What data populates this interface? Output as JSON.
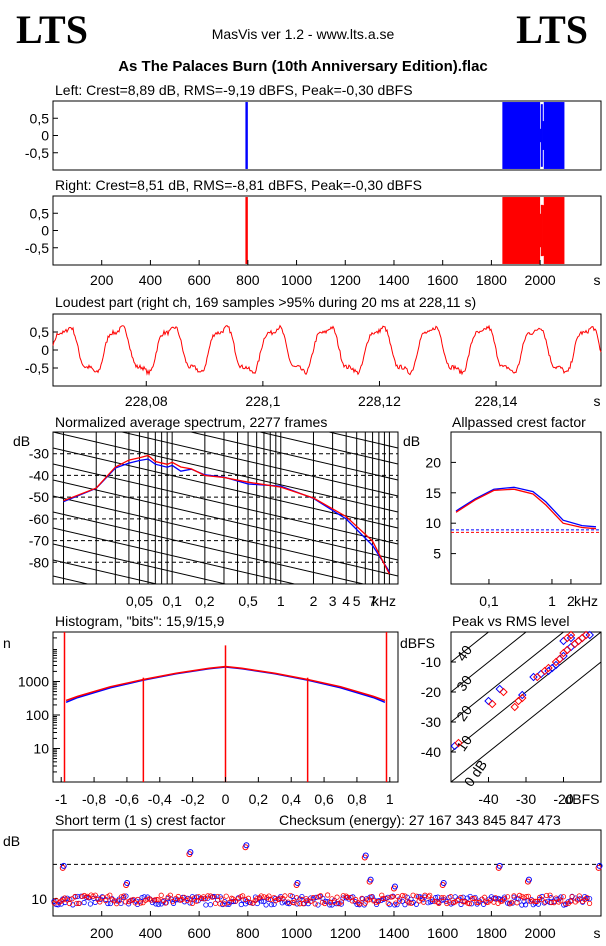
{
  "header": {
    "logo_left": "LTS",
    "logo_right": "LTS",
    "app_title": "MasVis ver 1.2 - www.lts.a.se",
    "file_name": "As The Palaces Burn (10th Anniversary Edition).flac"
  },
  "colors": {
    "left": "#0000ff",
    "right": "#ff0000"
  },
  "chart_data": [
    {
      "id": "left-waveform",
      "type": "area",
      "title": "Left: Crest=8,89 dB, RMS=-9,19 dBFS, Peak=-0,30 dBFS",
      "y_ticks": [
        "0,5",
        "0",
        "-0,5"
      ],
      "ylim": [
        -1,
        1
      ],
      "xlim": [
        0,
        2250
      ],
      "series": [
        {
          "color": "#0000ff",
          "peak": 0.97
        }
      ],
      "gaps_s": [
        0,
        790,
        800,
        1845,
        2000,
        2015
      ]
    },
    {
      "id": "right-waveform",
      "type": "area",
      "title": "Right: Crest=8,51 dB, RMS=-8,81 dBFS, Peak=-0,30 dBFS",
      "y_ticks": [
        "0,5",
        "0",
        "-0,5"
      ],
      "x_ticks": [
        "200",
        "400",
        "600",
        "800",
        "1000",
        "1200",
        "1400",
        "1600",
        "1800",
        "2000"
      ],
      "x_unit": "s",
      "ylim": [
        -1,
        1
      ],
      "xlim": [
        0,
        2250
      ],
      "marker_s": 228,
      "series": [
        {
          "color": "#ff0000",
          "peak": 0.97
        }
      ],
      "gaps_s": [
        0,
        790,
        800,
        1845,
        2000,
        2015
      ]
    },
    {
      "id": "loudest-part",
      "type": "line",
      "title": "Loudest part (right ch, 169 samples >95% during 20 ms at 228,11 s)",
      "y_ticks": [
        "0,5",
        "0",
        "-0,5"
      ],
      "x_ticks": [
        "228,08",
        "228,1",
        "228,12",
        "228,14"
      ],
      "x_unit": "s",
      "xlim": [
        228.064,
        228.158
      ],
      "ylim": [
        -1,
        1
      ],
      "series": [
        {
          "color": "#ff0000",
          "cycles": 10.5,
          "amplitude": 0.75
        }
      ]
    },
    {
      "id": "spectrum",
      "type": "line",
      "title": "Normalized average spectrum, 2277 frames",
      "ylabel": "dB",
      "y_ticks": [
        "-30",
        "-40",
        "-50",
        "-60",
        "-70",
        "-80"
      ],
      "x_ticks": [
        "0,05",
        "0,1",
        "0,2",
        "0,5",
        "1",
        "2",
        "3",
        "4",
        "5",
        "7"
      ],
      "x_unit": "kHz",
      "ylim": [
        -90,
        -20
      ],
      "series": [
        {
          "name": "left",
          "color": "#0000ff",
          "points": [
            [
              0.01,
              -52
            ],
            [
              0.02,
              -46
            ],
            [
              0.03,
              -37
            ],
            [
              0.04,
              -34
            ],
            [
              0.05,
              -33
            ],
            [
              0.06,
              -32
            ],
            [
              0.07,
              -35
            ],
            [
              0.09,
              -36
            ],
            [
              0.1,
              -35
            ],
            [
              0.12,
              -38
            ],
            [
              0.15,
              -37
            ],
            [
              0.2,
              -40
            ],
            [
              0.3,
              -41
            ],
            [
              0.5,
              -44
            ],
            [
              1,
              -45
            ],
            [
              2,
              -51
            ],
            [
              4,
              -60
            ],
            [
              7,
              -72
            ],
            [
              10,
              -84
            ]
          ]
        },
        {
          "name": "right",
          "color": "#ff0000",
          "points": [
            [
              0.01,
              -52
            ],
            [
              0.02,
              -46
            ],
            [
              0.03,
              -36
            ],
            [
              0.04,
              -33
            ],
            [
              0.05,
              -32
            ],
            [
              0.06,
              -31
            ],
            [
              0.07,
              -34
            ],
            [
              0.09,
              -35
            ],
            [
              0.1,
              -34
            ],
            [
              0.12,
              -36
            ],
            [
              0.15,
              -37
            ],
            [
              0.2,
              -40
            ],
            [
              0.3,
              -41
            ],
            [
              0.5,
              -43
            ],
            [
              1,
              -45
            ],
            [
              2,
              -50
            ],
            [
              4,
              -59
            ],
            [
              7,
              -70
            ],
            [
              10,
              -85
            ]
          ]
        }
      ]
    },
    {
      "id": "allpassed-crest",
      "type": "line",
      "title": "Allpassed crest factor",
      "ylabel": "dB",
      "y_ticks": [
        "20",
        "15",
        "10",
        "5"
      ],
      "x_ticks": [
        "0,1",
        "1",
        "2"
      ],
      "x_unit": "kHz",
      "ylim": [
        0,
        25
      ],
      "reference_lines": [
        {
          "color": "#0000ff",
          "value": 8.9
        },
        {
          "color": "#ff0000",
          "value": 8.5
        }
      ],
      "series": [
        {
          "name": "left",
          "color": "#0000ff",
          "points": [
            [
              0.03,
              12
            ],
            [
              0.06,
              14
            ],
            [
              0.12,
              15.6
            ],
            [
              0.25,
              15.9
            ],
            [
              0.5,
              15.2
            ],
            [
              0.8,
              13.5
            ],
            [
              1.5,
              10.5
            ],
            [
              3,
              9.6
            ],
            [
              5,
              9.4
            ]
          ]
        },
        {
          "name": "right",
          "color": "#ff0000",
          "points": [
            [
              0.03,
              11.8
            ],
            [
              0.06,
              13.8
            ],
            [
              0.12,
              15.4
            ],
            [
              0.25,
              15.6
            ],
            [
              0.5,
              14.8
            ],
            [
              0.8,
              13
            ],
            [
              1.5,
              10
            ],
            [
              3,
              9.3
            ],
            [
              5,
              9.1
            ]
          ]
        }
      ]
    },
    {
      "id": "histogram",
      "type": "line",
      "title": "Histogram, \"bits\": 15,9/15,9",
      "ylabel": "n",
      "y_ticks": [
        "1000",
        "100",
        "10"
      ],
      "x_ticks": [
        "-1",
        "-0,8",
        "-0,6",
        "-0,4",
        "-0,2",
        "0",
        "0,2",
        "0,4",
        "0,6",
        "0,8",
        "1"
      ],
      "xlim": [
        -1.05,
        1.05
      ],
      "ylim_log": [
        1,
        30000
      ],
      "series": [
        {
          "name": "left",
          "color": "#0000ff",
          "points": [
            [
              -0.97,
              240
            ],
            [
              -0.9,
              330
            ],
            [
              -0.7,
              650
            ],
            [
              -0.5,
              1100
            ],
            [
              -0.3,
              1700
            ],
            [
              -0.1,
              2400
            ],
            [
              0,
              2700
            ],
            [
              0.1,
              2400
            ],
            [
              0.3,
              1700
            ],
            [
              0.5,
              1100
            ],
            [
              0.7,
              650
            ],
            [
              0.9,
              330
            ],
            [
              0.97,
              240
            ]
          ]
        },
        {
          "name": "right",
          "color": "#ff0000",
          "points": [
            [
              -0.97,
              270
            ],
            [
              -0.9,
              360
            ],
            [
              -0.7,
              700
            ],
            [
              -0.5,
              1150
            ],
            [
              -0.3,
              1750
            ],
            [
              -0.1,
              2500
            ],
            [
              0,
              2800
            ],
            [
              0.1,
              2500
            ],
            [
              0.3,
              1750
            ],
            [
              0.5,
              1150
            ],
            [
              0.7,
              700
            ],
            [
              0.9,
              360
            ],
            [
              0.97,
              270
            ]
          ]
        }
      ],
      "spikes": [
        {
          "x": -0.98,
          "n": 30000
        },
        {
          "x": 0.98,
          "n": 30000
        },
        {
          "x": 0,
          "n": 12000
        },
        {
          "x": -0.5,
          "n": 1300
        },
        {
          "x": 0.5,
          "n": 1300
        }
      ]
    },
    {
      "id": "peak-vs-rms",
      "type": "scatter",
      "title": "Peak vs RMS level",
      "ylabel": "dBFS",
      "y_ticks": [
        "-10",
        "-20",
        "-30",
        "-40"
      ],
      "x_ticks": [
        "-40",
        "-30",
        "-20"
      ],
      "x_unit": "dBFS",
      "xlim": [
        -50,
        -10
      ],
      "ylim": [
        -50,
        0
      ],
      "crest_labels": [
        "40",
        "30",
        "20",
        "10",
        "0 dB"
      ],
      "series": [
        {
          "name": "left",
          "color": "#0000ff",
          "points": [
            [
              -49,
              -38
            ],
            [
              -40,
              -23
            ],
            [
              -37,
              -19
            ],
            [
              -31,
              -21
            ],
            [
              -28,
              -15
            ],
            [
              -26,
              -14
            ],
            [
              -24,
              -13
            ],
            [
              -23,
              -12
            ],
            [
              -22,
              -11
            ],
            [
              -21,
              -9
            ],
            [
              -20,
              -8
            ],
            [
              -19,
              -6
            ],
            [
              -18,
              -5
            ],
            [
              -17,
              -4
            ],
            [
              -16,
              -3
            ],
            [
              -15,
              -2
            ],
            [
              -14,
              -1
            ],
            [
              -13,
              -1
            ],
            [
              -20,
              -3
            ],
            [
              -18,
              -2
            ]
          ]
        },
        {
          "name": "right",
          "color": "#ff0000",
          "points": [
            [
              -48,
              -37
            ],
            [
              -39,
              -24
            ],
            [
              -36,
              -20
            ],
            [
              -33,
              -25
            ],
            [
              -32,
              -23
            ],
            [
              -31,
              -22
            ],
            [
              -27,
              -15
            ],
            [
              -25,
              -13
            ],
            [
              -24,
              -12
            ],
            [
              -22,
              -10
            ],
            [
              -21,
              -9
            ],
            [
              -20,
              -7
            ],
            [
              -19,
              -6
            ],
            [
              -17,
              -4
            ],
            [
              -16,
              -3
            ],
            [
              -15,
              -2
            ],
            [
              -14,
              -1
            ],
            [
              -19,
              -2
            ],
            [
              -18,
              -1
            ]
          ]
        }
      ]
    },
    {
      "id": "short-term-crest",
      "type": "scatter",
      "title": "Short term (1 s) crest factor",
      "checksum_label": "Checksum (energy):  27 167 343 845 847 473",
      "ylabel": "dB",
      "y_ticks": [
        "10"
      ],
      "x_ticks": [
        "200",
        "400",
        "600",
        "800",
        "1000",
        "1200",
        "1400",
        "1600",
        "1800",
        "2000"
      ],
      "x_unit": "s",
      "xlim": [
        0,
        2250
      ],
      "ylim": [
        5,
        30
      ],
      "dashed_level": 20,
      "outliers": [
        [
          40,
          19
        ],
        [
          560,
          23
        ],
        [
          790,
          25
        ],
        [
          1280,
          22
        ],
        [
          1830,
          19
        ],
        [
          2240,
          19
        ],
        [
          300,
          14
        ],
        [
          1300,
          15
        ],
        [
          1600,
          14
        ],
        [
          1950,
          15
        ],
        [
          1000,
          14
        ],
        [
          1400,
          13
        ]
      ]
    }
  ]
}
